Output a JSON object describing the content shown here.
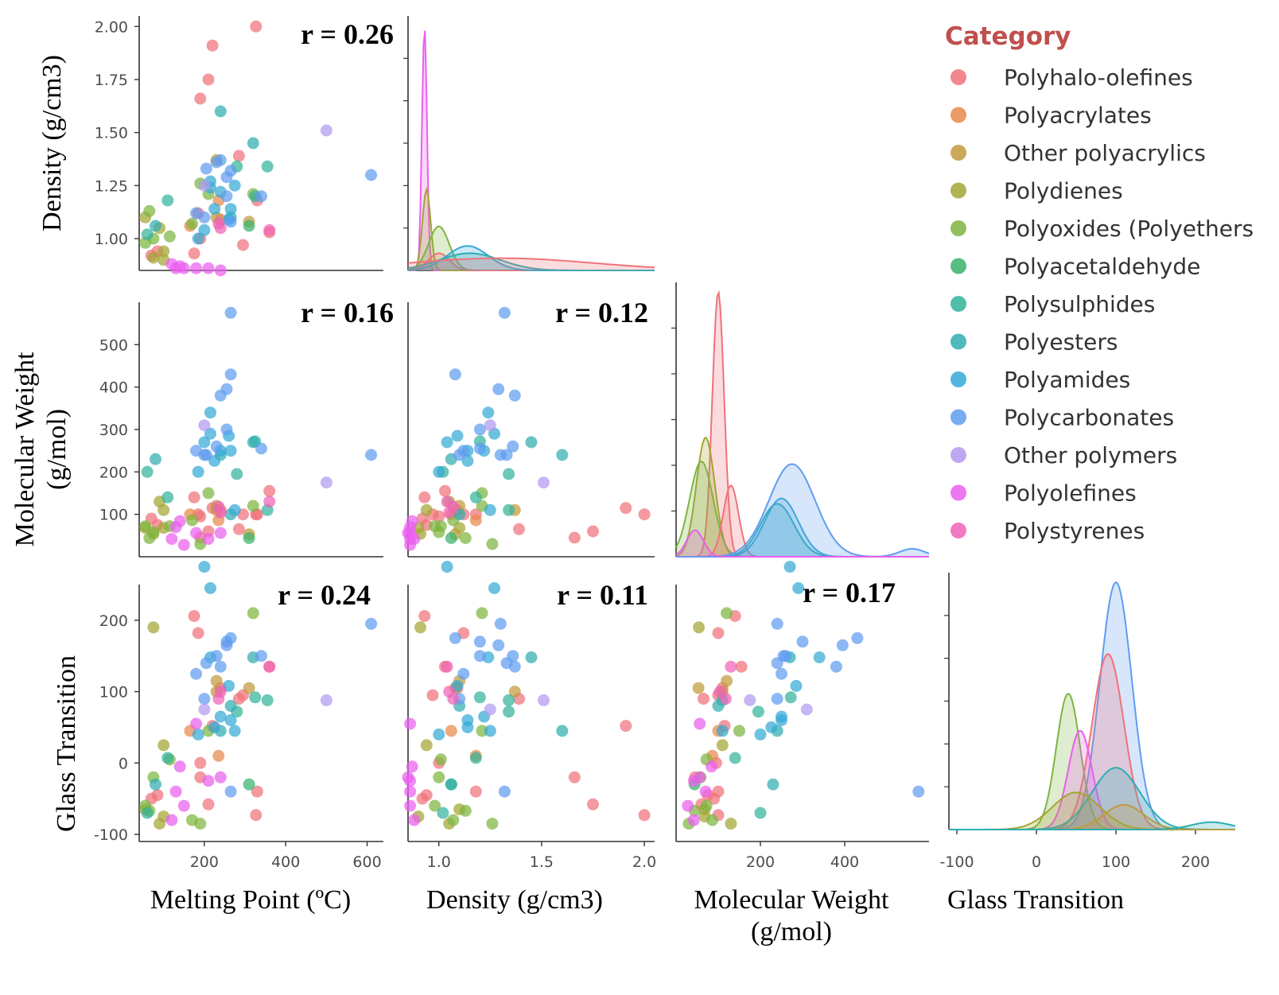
{
  "chart_data": {
    "type": "scatter",
    "layout": "pairplot-lower-triangle",
    "variables": [
      "Melting Point (ºC)",
      "Density (g/cm3)",
      "Molecular Weight (g/mol)",
      "Glass Transition"
    ],
    "xlabels": [
      "Melting Point (ºC)",
      "Density (g/cm3)",
      "Molecular Weight\n(g/mol)",
      "Glass Transition"
    ],
    "ylabels": [
      "",
      "Density (g/cm3)",
      "Molecular Weight\n(g/mol)",
      "Glass Transition"
    ],
    "legend": {
      "title": "Category",
      "placement": "top-right",
      "entries": [
        {
          "name": "Polyhalo-olefines",
          "color": "#f0727a"
        },
        {
          "name": "Polyacrylates",
          "color": "#e8894a"
        },
        {
          "name": "Other polyacrylics",
          "color": "#c29a3c"
        },
        {
          "name": "Polydienes",
          "color": "#a3a533"
        },
        {
          "name": "Polyoxides (Polyethers",
          "color": "#7db540"
        },
        {
          "name": "Polyacetaldehyde",
          "color": "#39b36c"
        },
        {
          "name": "Polysulphides",
          "color": "#33b39b"
        },
        {
          "name": "Polyesters",
          "color": "#30adb0"
        },
        {
          "name": "Polyamides",
          "color": "#35a9d6"
        },
        {
          "name": "Polycarbonates",
          "color": "#5f9df0"
        },
        {
          "name": "Other polymers",
          "color": "#b19af0"
        },
        {
          "name": "Polyolefines",
          "color": "#ea5ef0"
        },
        {
          "name": "Polystyrenes",
          "color": "#f062b9"
        }
      ]
    },
    "axes": {
      "melting_point": {
        "range": [
          40,
          640
        ],
        "ticks": [
          "200",
          "400",
          "600"
        ]
      },
      "density": {
        "range": [
          0.85,
          2.05
        ],
        "ticks": [
          "1.0",
          "1.5",
          "2.0"
        ]
      },
      "molecular_weight": {
        "range": [
          0,
          600
        ],
        "ticks": [
          "200",
          "400"
        ],
        "row_ticks": [
          "100",
          "200",
          "300",
          "400",
          "500"
        ],
        "row_ticks_shown": [
          "100",
          "200",
          "300",
          "400",
          "500"
        ]
      },
      "glass_transition": {
        "range": [
          -110,
          250
        ],
        "ticks": [
          "-100",
          "0",
          "100",
          "200"
        ]
      },
      "density_row_ticks": [
        "1.00",
        "1.25",
        "1.50",
        "1.75",
        "2.00"
      ]
    },
    "correlations": [
      {
        "row": "Density (g/cm3)",
        "col": "Melting Point (ºC)",
        "label": "r = 0.26"
      },
      {
        "row": "Molecular Weight (g/mol)",
        "col": "Melting Point (ºC)",
        "label": "r = 0.16"
      },
      {
        "row": "Molecular Weight (g/mol)",
        "col": "Density (g/cm3)",
        "label": "r = 0.12"
      },
      {
        "row": "Glass Transition",
        "col": "Melting Point (ºC)",
        "label": "r = 0.24"
      },
      {
        "row": "Glass Transition",
        "col": "Density (g/cm3)",
        "label": "r = 0.11"
      },
      {
        "row": "Glass Transition",
        "col": "Molecular Weight (g/mol)",
        "label": "r = 0.17"
      }
    ],
    "points": [
      {
        "c": 0,
        "mp": 327,
        "d": 2.0,
        "mw": 100,
        "tg": -73
      },
      {
        "c": 0,
        "mp": 220,
        "d": 1.91,
        "mw": 115,
        "tg": 52
      },
      {
        "c": 0,
        "mp": 210,
        "d": 1.75,
        "mw": 60,
        "tg": -58
      },
      {
        "c": 0,
        "mp": 190,
        "d": 1.66,
        "mw": 45,
        "tg": -20
      },
      {
        "c": 0,
        "mp": 285,
        "d": 1.39,
        "mw": 65,
        "tg": 90
      },
      {
        "c": 0,
        "mp": 185,
        "d": 1.12,
        "mw": 100,
        "tg": 182
      },
      {
        "c": 0,
        "mp": 175,
        "d": 0.93,
        "mw": 140,
        "tg": 206
      },
      {
        "c": 0,
        "mp": 295,
        "d": 0.97,
        "mw": 100,
        "tg": 95
      },
      {
        "c": 0,
        "mp": 360,
        "d": 1.03,
        "mw": 155,
        "tg": 135
      },
      {
        "c": 0,
        "mp": 70,
        "d": 0.92,
        "mw": 90,
        "tg": -50
      },
      {
        "c": 0,
        "mp": 85,
        "d": 0.94,
        "mw": 75,
        "tg": -45
      },
      {
        "c": 0,
        "mp": 240,
        "d": 1.09,
        "mw": 110,
        "tg": 105
      },
      {
        "c": 0,
        "mp": 190,
        "d": 1.0,
        "mw": 95,
        "tg": 0
      },
      {
        "c": 0,
        "mp": 330,
        "d": 1.18,
        "mw": 100,
        "tg": -40
      },
      {
        "c": 1,
        "mp": 235,
        "d": 1.18,
        "mw": 86,
        "tg": 10
      },
      {
        "c": 1,
        "mp": 165,
        "d": 1.06,
        "mw": 100,
        "tg": 45
      },
      {
        "c": 2,
        "mp": 230,
        "d": 1.37,
        "mw": 110,
        "tg": 100
      },
      {
        "c": 2,
        "mp": 310,
        "d": 1.08,
        "mw": 53,
        "tg": 105
      },
      {
        "c": 2,
        "mp": 230,
        "d": 1.1,
        "mw": 120,
        "tg": 115
      },
      {
        "c": 3,
        "mp": 55,
        "d": 1.1,
        "mw": 68,
        "tg": -65
      },
      {
        "c": 3,
        "mp": 75,
        "d": 0.91,
        "mw": 54,
        "tg": 190
      },
      {
        "c": 3,
        "mp": 100,
        "d": 0.9,
        "mw": 68,
        "tg": -75
      },
      {
        "c": 3,
        "mp": 100,
        "d": 0.94,
        "mw": 110,
        "tg": 25
      },
      {
        "c": 3,
        "mp": 90,
        "d": 1.05,
        "mw": 130,
        "tg": -85
      },
      {
        "c": 4,
        "mp": 65,
        "d": 1.13,
        "mw": 44,
        "tg": -67
      },
      {
        "c": 4,
        "mp": 75,
        "d": 1.0,
        "mw": 58,
        "tg": -20
      },
      {
        "c": 4,
        "mp": 115,
        "d": 1.01,
        "mw": 72,
        "tg": 5
      },
      {
        "c": 4,
        "mp": 170,
        "d": 1.07,
        "mw": 86,
        "tg": -80
      },
      {
        "c": 4,
        "mp": 190,
        "d": 1.26,
        "mw": 30,
        "tg": -85
      },
      {
        "c": 4,
        "mp": 210,
        "d": 1.21,
        "mw": 150,
        "tg": 45
      },
      {
        "c": 4,
        "mp": 55,
        "d": 0.98,
        "mw": 72,
        "tg": -60
      },
      {
        "c": 4,
        "mp": 320,
        "d": 1.21,
        "mw": 120,
        "tg": 210
      },
      {
        "c": 5,
        "mp": 310,
        "d": 1.06,
        "mw": 44,
        "tg": -30
      },
      {
        "c": 6,
        "mp": 355,
        "d": 1.34,
        "mw": 110,
        "tg": 88
      },
      {
        "c": 6,
        "mp": 280,
        "d": 1.34,
        "mw": 195,
        "tg": 72
      },
      {
        "c": 6,
        "mp": 110,
        "d": 1.18,
        "mw": 140,
        "tg": 7
      },
      {
        "c": 6,
        "mp": 325,
        "d": 1.2,
        "mw": 272,
        "tg": 92
      },
      {
        "c": 6,
        "mp": 60,
        "d": 1.02,
        "mw": 200,
        "tg": -70
      },
      {
        "c": 7,
        "mp": 240,
        "d": 1.6,
        "mw": 240,
        "tg": 45
      },
      {
        "c": 7,
        "mp": 320,
        "d": 1.45,
        "mw": 270,
        "tg": 148
      },
      {
        "c": 7,
        "mp": 80,
        "d": 1.06,
        "mw": 230,
        "tg": -30
      },
      {
        "c": 7,
        "mp": 265,
        "d": 1.1,
        "mw": 100,
        "tg": 80
      },
      {
        "c": 8,
        "mp": 225,
        "d": 1.14,
        "mw": 226,
        "tg": 50
      },
      {
        "c": 8,
        "mp": 265,
        "d": 1.14,
        "mw": 250,
        "tg": 60
      },
      {
        "c": 8,
        "mp": 215,
        "d": 1.24,
        "mw": 340,
        "tg": 148
      },
      {
        "c": 8,
        "mp": 260,
        "d": 1.09,
        "mw": 285,
        "tg": 108
      },
      {
        "c": 8,
        "mp": 185,
        "d": 1.0,
        "mw": 200,
        "tg": 40
      },
      {
        "c": 8,
        "mp": 275,
        "d": 1.25,
        "mw": 110,
        "tg": 45
      },
      {
        "c": 8,
        "mp": 240,
        "d": 1.22,
        "mw": 250,
        "tg": 65
      },
      {
        "c": 8,
        "mp": 200,
        "d": 1.04,
        "mw": 270,
        "tg": 275
      },
      {
        "c": 8,
        "mp": 215,
        "d": 1.27,
        "mw": 290,
        "tg": 245
      },
      {
        "c": 9,
        "mp": 230,
        "d": 1.36,
        "mw": 260,
        "tg": 150
      },
      {
        "c": 9,
        "mp": 255,
        "d": 1.2,
        "mw": 300,
        "tg": 170
      },
      {
        "c": 9,
        "mp": 265,
        "d": 1.08,
        "mw": 430,
        "tg": 175
      },
      {
        "c": 9,
        "mp": 610,
        "d": 1.3,
        "mw": 240,
        "tg": 195
      },
      {
        "c": 9,
        "mp": 265,
        "d": 1.32,
        "mw": 575,
        "tg": -40
      },
      {
        "c": 9,
        "mp": 180,
        "d": 1.12,
        "mw": 250,
        "tg": 125
      },
      {
        "c": 9,
        "mp": 205,
        "d": 1.33,
        "mw": 240,
        "tg": 140
      },
      {
        "c": 9,
        "mp": 240,
        "d": 1.37,
        "mw": 380,
        "tg": 135
      },
      {
        "c": 9,
        "mp": 340,
        "d": 1.2,
        "mw": 255,
        "tg": 150
      },
      {
        "c": 9,
        "mp": 255,
        "d": 1.29,
        "mw": 395,
        "tg": 165
      },
      {
        "c": 9,
        "mp": 200,
        "d": 1.1,
        "mw": 240,
        "tg": 90
      },
      {
        "c": 10,
        "mp": 500,
        "d": 1.51,
        "mw": 175,
        "tg": 88
      },
      {
        "c": 10,
        "mp": 200,
        "d": 1.25,
        "mw": 310,
        "tg": 75
      },
      {
        "c": 11,
        "mp": 150,
        "d": 0.86,
        "mw": 28,
        "tg": -60
      },
      {
        "c": 11,
        "mp": 240,
        "d": 0.85,
        "mw": 56,
        "tg": -20
      },
      {
        "c": 11,
        "mp": 210,
        "d": 0.86,
        "mw": 42,
        "tg": -25
      },
      {
        "c": 11,
        "mp": 130,
        "d": 0.86,
        "mw": 70,
        "tg": -40
      },
      {
        "c": 11,
        "mp": 180,
        "d": 0.86,
        "mw": 56,
        "tg": 55
      },
      {
        "c": 11,
        "mp": 140,
        "d": 0.87,
        "mw": 84,
        "tg": -5
      },
      {
        "c": 11,
        "mp": 120,
        "d": 0.88,
        "mw": 42,
        "tg": -80
      },
      {
        "c": 12,
        "mp": 240,
        "d": 1.05,
        "mw": 104,
        "tg": 100
      },
      {
        "c": 12,
        "mp": 235,
        "d": 1.07,
        "mw": 118,
        "tg": 90
      },
      {
        "c": 12,
        "mp": 360,
        "d": 1.04,
        "mw": 130,
        "tg": 135
      }
    ],
    "kde": {
      "density": [
        {
          "c": 11,
          "peak": 0.93,
          "width": 0.012,
          "height": 1.0
        },
        {
          "c": 3,
          "peak": 0.94,
          "width": 0.02,
          "height": 0.33
        },
        {
          "c": 4,
          "peak": 1.0,
          "width": 0.05,
          "height": 0.18
        },
        {
          "c": 0,
          "peak": 1.0,
          "width": 0.05,
          "height": 0.07
        },
        {
          "c": 8,
          "peak": 1.14,
          "width": 0.1,
          "height": 0.1
        },
        {
          "c": 7,
          "peak": 1.15,
          "width": 0.15,
          "height": 0.07
        },
        {
          "c": 0,
          "peak": 1.3,
          "width": 0.45,
          "height": 0.05
        }
      ],
      "molecular_weight": [
        {
          "c": 0,
          "peak": 100,
          "width": 14,
          "height": 1.0
        },
        {
          "c": 3,
          "peak": 70,
          "width": 22,
          "height": 0.45
        },
        {
          "c": 4,
          "peak": 60,
          "width": 28,
          "height": 0.36
        },
        {
          "c": 0,
          "peak": 130,
          "width": 18,
          "height": 0.27
        },
        {
          "c": 7,
          "peak": 240,
          "width": 40,
          "height": 0.2
        },
        {
          "c": 8,
          "peak": 250,
          "width": 40,
          "height": 0.22
        },
        {
          "c": 9,
          "peak": 275,
          "width": 55,
          "height": 0.35
        },
        {
          "c": 9,
          "peak": 560,
          "width": 30,
          "height": 0.03
        },
        {
          "c": 11,
          "peak": 45,
          "width": 20,
          "height": 0.1
        }
      ],
      "glass_transition": [
        {
          "c": 9,
          "peak": 100,
          "width": 20,
          "height": 1.0
        },
        {
          "c": 0,
          "peak": 90,
          "width": 20,
          "height": 0.71
        },
        {
          "c": 4,
          "peak": 40,
          "width": 15,
          "height": 0.55
        },
        {
          "c": 11,
          "peak": 55,
          "width": 15,
          "height": 0.4
        },
        {
          "c": 7,
          "peak": 100,
          "width": 30,
          "height": 0.25
        },
        {
          "c": 3,
          "peak": 50,
          "width": 30,
          "height": 0.15
        },
        {
          "c": 2,
          "peak": 110,
          "width": 25,
          "height": 0.1
        },
        {
          "c": 7,
          "peak": 220,
          "width": 25,
          "height": 0.03
        }
      ]
    }
  }
}
